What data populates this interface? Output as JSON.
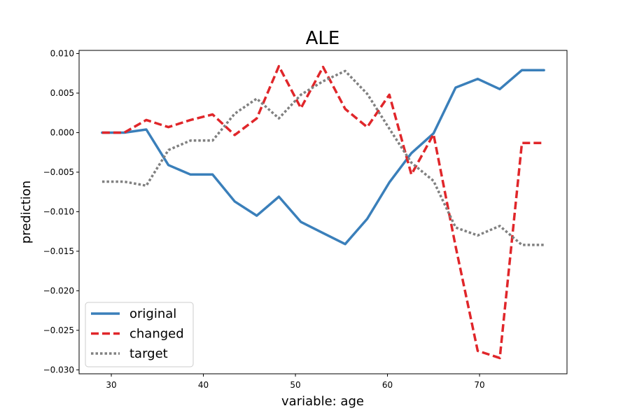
{
  "chart_data": {
    "type": "line",
    "title": "ALE",
    "xlabel": "variable: age",
    "ylabel": "prediction",
    "xlim": [
      26.5,
      79.5
    ],
    "ylim": [
      -0.0305,
      0.0104
    ],
    "x_ticks": [
      30,
      40,
      50,
      60,
      70
    ],
    "y_ticks": [
      0.01,
      0.005,
      0.0,
      -0.005,
      -0.01,
      -0.015,
      -0.02,
      -0.025,
      -0.03
    ],
    "y_tick_labels": [
      "0.010",
      "0.005",
      "0.000",
      "−0.005",
      "−0.010",
      "−0.015",
      "−0.020",
      "−0.025",
      "−0.030"
    ],
    "grid": false,
    "legend_position": "lower-left",
    "x": [
      29,
      31.4,
      33.8,
      36.2,
      38.6,
      41,
      43.4,
      45.8,
      48.2,
      50.6,
      53,
      55.4,
      57.8,
      60.2,
      62.6,
      65,
      67.4,
      69.8,
      72.2,
      74.6,
      77
    ],
    "series": [
      {
        "name": "original",
        "style": "solid",
        "color": "#3a7fba",
        "values": [
          0.0,
          0.0,
          0.0004,
          -0.0041,
          -0.0053,
          -0.0053,
          -0.0087,
          -0.0105,
          -0.0081,
          -0.0113,
          -0.0127,
          -0.0141,
          -0.0109,
          -0.0063,
          -0.0026,
          -0.0001,
          0.0057,
          0.0068,
          0.0055,
          0.0079,
          0.0079
        ]
      },
      {
        "name": "changed",
        "style": "dashed",
        "color": "#e0262a",
        "values": [
          0.0,
          0.0,
          0.0016,
          0.0007,
          0.0016,
          0.0023,
          -0.0003,
          0.0018,
          0.0084,
          0.0031,
          0.0083,
          0.003,
          0.0007,
          0.0048,
          -0.0053,
          -0.0002,
          -0.0144,
          -0.0276,
          -0.0285,
          -0.0013,
          -0.0013
        ]
      },
      {
        "name": "target",
        "style": "dotted",
        "color": "#808080",
        "values": [
          -0.0062,
          -0.0062,
          -0.0067,
          -0.0022,
          -0.001,
          -0.001,
          0.0024,
          0.0043,
          0.0018,
          0.0048,
          0.0065,
          0.0078,
          0.0049,
          0.0005,
          -0.0038,
          -0.0061,
          -0.012,
          -0.013,
          -0.0118,
          -0.0142,
          -0.0142
        ]
      }
    ]
  }
}
